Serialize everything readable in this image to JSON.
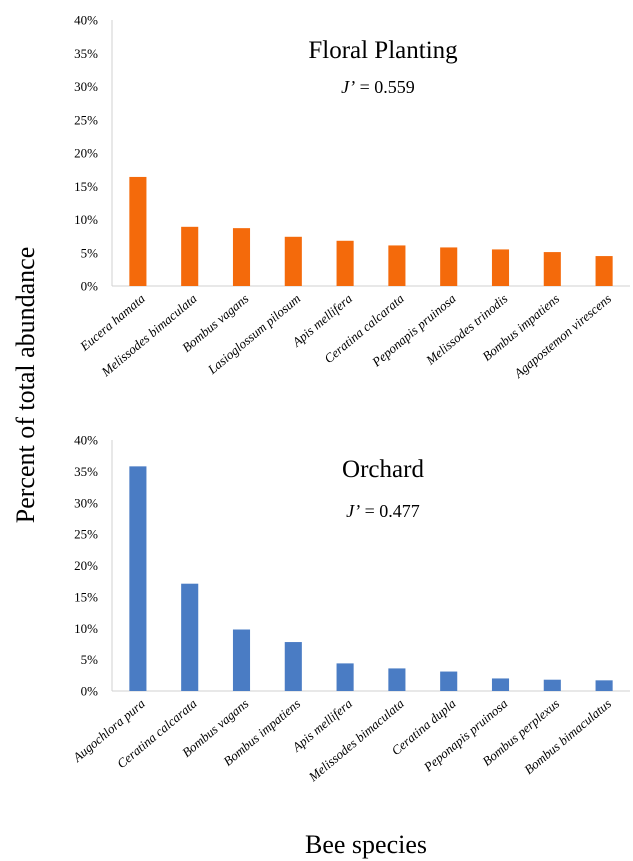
{
  "figure": {
    "ylabel": "Percent of total abundance",
    "xlabel": "Bee species"
  },
  "chart_data": [
    {
      "type": "bar",
      "title": "Floral Planting",
      "annotation_label": "J’",
      "annotation_value": "= 0.559",
      "categories": [
        "Eucera hamata",
        "Melissodes bimaculata",
        "Bombus vagans",
        "Lasioglossum pilosum",
        "Apis mellifera",
        "Ceratina calcarata",
        "Peponapis pruinosa",
        "Melissodes trinodis",
        "Bombus impatiens",
        "Agapostemon virescens"
      ],
      "values": [
        16.4,
        8.9,
        8.7,
        7.4,
        6.8,
        6.1,
        5.8,
        5.5,
        5.1,
        4.5
      ],
      "ylim": [
        0,
        40
      ],
      "yticks": [
        "0%",
        "5%",
        "10%",
        "15%",
        "20%",
        "25%",
        "30%",
        "35%",
        "40%"
      ],
      "color": "#f46a0b",
      "grid": false
    },
    {
      "type": "bar",
      "title": "Orchard",
      "annotation_label": "J’",
      "annotation_value": "= 0.477",
      "categories": [
        "Augochlora pura",
        "Ceratina calcarata",
        "Bombus vagans",
        "Bombus impatiens",
        "Apis mellifera",
        "Melissodes bimaculata",
        "Ceratina dupla",
        "Peponapis pruinosa",
        "Bombus perplexus",
        "Bombus bimaculatus"
      ],
      "values": [
        35.8,
        17.1,
        9.8,
        7.8,
        4.4,
        3.6,
        3.1,
        2.0,
        1.8,
        1.7
      ],
      "ylim": [
        0,
        40
      ],
      "yticks": [
        "0%",
        "5%",
        "10%",
        "15%",
        "20%",
        "25%",
        "30%",
        "35%",
        "40%"
      ],
      "color": "#4a7cc4",
      "grid": false
    }
  ]
}
